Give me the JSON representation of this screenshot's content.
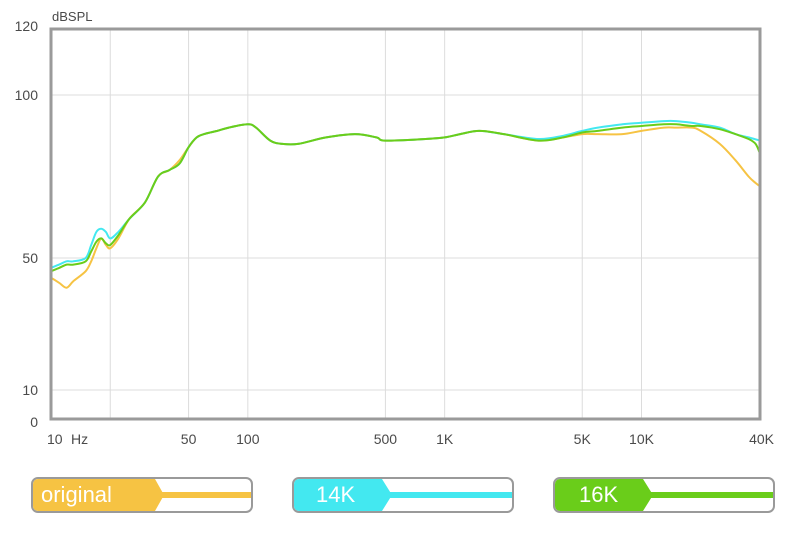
{
  "chart_data": {
    "type": "line",
    "title": "",
    "ylabel": "dBSPL",
    "xlabel": "Hz",
    "x_scale": "log",
    "xlim": [
      10,
      40000
    ],
    "ylim": [
      0,
      120
    ],
    "grid": true,
    "x_ticks": [
      {
        "value": 10,
        "label": "10"
      },
      {
        "value": 50,
        "label": "50"
      },
      {
        "value": 100,
        "label": "100"
      },
      {
        "value": 500,
        "label": "500"
      },
      {
        "value": 1000,
        "label": "1K"
      },
      {
        "value": 5000,
        "label": "5K"
      },
      {
        "value": 10000,
        "label": "10K"
      },
      {
        "value": 40000,
        "label": "40K"
      }
    ],
    "x_gridlines": [
      20,
      50,
      100,
      500,
      1000,
      5000,
      10000
    ],
    "y_ticks": [
      {
        "value": 120,
        "label": "120"
      },
      {
        "value": 100,
        "label": "100"
      },
      {
        "value": 50,
        "label": "50"
      },
      {
        "value": 10,
        "label": "10"
      },
      {
        "value": 0,
        "label": "0"
      }
    ],
    "series": [
      {
        "name": "original",
        "color": "#f6c343",
        "points": [
          [
            10,
            44
          ],
          [
            11,
            42.5
          ],
          [
            12,
            41
          ],
          [
            13,
            43
          ],
          [
            15,
            46
          ],
          [
            16,
            49
          ],
          [
            17,
            53
          ],
          [
            18,
            56
          ],
          [
            19,
            54
          ],
          [
            20,
            53
          ],
          [
            22,
            56
          ],
          [
            25,
            62
          ],
          [
            30,
            67
          ],
          [
            35,
            75
          ],
          [
            40,
            77
          ],
          [
            45,
            80
          ],
          [
            50,
            84
          ],
          [
            55,
            87
          ],
          [
            60,
            88
          ],
          [
            70,
            89
          ],
          [
            80,
            90
          ],
          [
            100,
            91
          ],
          [
            110,
            90
          ],
          [
            130,
            86
          ],
          [
            150,
            85
          ],
          [
            180,
            85
          ],
          [
            250,
            87
          ],
          [
            350,
            88
          ],
          [
            450,
            87
          ],
          [
            500,
            86
          ],
          [
            800,
            86.5
          ],
          [
            1000,
            87
          ],
          [
            1200,
            88
          ],
          [
            1500,
            89
          ],
          [
            2000,
            88
          ],
          [
            3000,
            86
          ],
          [
            4000,
            87
          ],
          [
            5000,
            88
          ],
          [
            6000,
            88
          ],
          [
            8000,
            88
          ],
          [
            10000,
            89
          ],
          [
            13000,
            90
          ],
          [
            15000,
            90
          ],
          [
            18000,
            90
          ],
          [
            20000,
            89
          ],
          [
            25000,
            85
          ],
          [
            30000,
            80
          ],
          [
            35000,
            75
          ],
          [
            38000,
            73
          ],
          [
            40000,
            72
          ]
        ]
      },
      {
        "name": "14K",
        "color": "#43e8f0",
        "points": [
          [
            10,
            47
          ],
          [
            11,
            48
          ],
          [
            12,
            49
          ],
          [
            13,
            49
          ],
          [
            15,
            50
          ],
          [
            16,
            54
          ],
          [
            17,
            58
          ],
          [
            18,
            59
          ],
          [
            19,
            58
          ],
          [
            20,
            56
          ],
          [
            22,
            58
          ],
          [
            25,
            62
          ],
          [
            30,
            67
          ],
          [
            35,
            75
          ],
          [
            40,
            77
          ],
          [
            45,
            79
          ],
          [
            50,
            84
          ],
          [
            55,
            87
          ],
          [
            60,
            88
          ],
          [
            70,
            89
          ],
          [
            80,
            90
          ],
          [
            100,
            91
          ],
          [
            110,
            90
          ],
          [
            130,
            86
          ],
          [
            150,
            85
          ],
          [
            180,
            85
          ],
          [
            250,
            87
          ],
          [
            350,
            88
          ],
          [
            450,
            87
          ],
          [
            500,
            86
          ],
          [
            800,
            86.5
          ],
          [
            1000,
            87
          ],
          [
            1200,
            88
          ],
          [
            1500,
            89
          ],
          [
            2000,
            88
          ],
          [
            3000,
            86.5
          ],
          [
            4000,
            87.5
          ],
          [
            5000,
            89
          ],
          [
            6000,
            90
          ],
          [
            8000,
            91
          ],
          [
            10000,
            91.5
          ],
          [
            13000,
            92
          ],
          [
            15000,
            92
          ],
          [
            18000,
            91.5
          ],
          [
            20000,
            91
          ],
          [
            25000,
            90
          ],
          [
            30000,
            88
          ],
          [
            35000,
            87
          ],
          [
            40000,
            86
          ]
        ]
      },
      {
        "name": "16K",
        "color": "#6acd1a",
        "points": [
          [
            10,
            46
          ],
          [
            11,
            47
          ],
          [
            12,
            48
          ],
          [
            13,
            48
          ],
          [
            15,
            49
          ],
          [
            16,
            52
          ],
          [
            17,
            55
          ],
          [
            18,
            56
          ],
          [
            19,
            54.5
          ],
          [
            20,
            54
          ],
          [
            22,
            57
          ],
          [
            25,
            62
          ],
          [
            30,
            67
          ],
          [
            35,
            75
          ],
          [
            40,
            77
          ],
          [
            45,
            79
          ],
          [
            50,
            84
          ],
          [
            55,
            87
          ],
          [
            60,
            88
          ],
          [
            70,
            89
          ],
          [
            80,
            90
          ],
          [
            100,
            91
          ],
          [
            110,
            90
          ],
          [
            130,
            86
          ],
          [
            150,
            85
          ],
          [
            180,
            85
          ],
          [
            250,
            87
          ],
          [
            350,
            88
          ],
          [
            450,
            87
          ],
          [
            500,
            86
          ],
          [
            800,
            86.5
          ],
          [
            1000,
            87
          ],
          [
            1200,
            88
          ],
          [
            1500,
            89
          ],
          [
            2000,
            88
          ],
          [
            3000,
            86
          ],
          [
            4000,
            87
          ],
          [
            5000,
            88.5
          ],
          [
            6000,
            89
          ],
          [
            8000,
            90
          ],
          [
            10000,
            90.5
          ],
          [
            13000,
            91
          ],
          [
            15000,
            91
          ],
          [
            18000,
            90.5
          ],
          [
            20000,
            90.5
          ],
          [
            25000,
            89.5
          ],
          [
            30000,
            88
          ],
          [
            35000,
            86.5
          ],
          [
            38000,
            85
          ],
          [
            40000,
            82
          ]
        ]
      }
    ]
  },
  "legend": [
    {
      "label": "original",
      "color": "#f6c343"
    },
    {
      "label": "14K",
      "color": "#43e8f0"
    },
    {
      "label": "16K",
      "color": "#6acd1a"
    }
  ]
}
